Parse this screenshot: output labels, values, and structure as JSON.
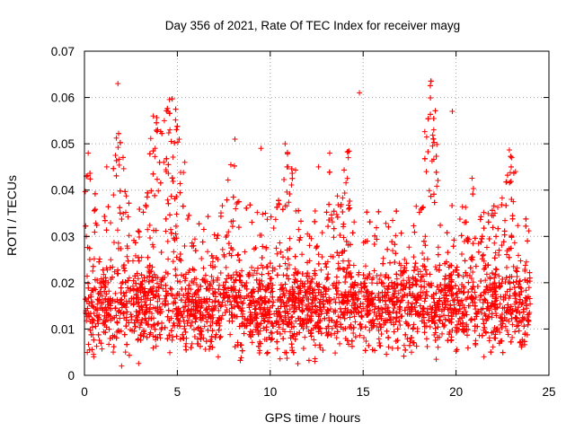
{
  "chart_data": {
    "type": "scatter",
    "title": "Day 356 of 2021, Rate Of TEC Index for receiver mayg",
    "xlabel": "GPS time / hours",
    "ylabel": "ROTI / TECUs",
    "xlim": [
      0,
      25
    ],
    "ylim": [
      0,
      0.07
    ],
    "x_ticks": [
      "0",
      "5",
      "10",
      "15",
      "20",
      "25"
    ],
    "x_tick_values": [
      0,
      5,
      10,
      15,
      20,
      25
    ],
    "y_ticks": [
      "0",
      "0.01",
      "0.02",
      "0.03",
      "0.04",
      "0.05",
      "0.06",
      "0.07"
    ],
    "y_tick_values": [
      0,
      0.01,
      0.02,
      0.03,
      0.04,
      0.05,
      0.06,
      0.07
    ],
    "grid": true,
    "marker": "+",
    "color": "#ff0000",
    "series": [
      {
        "name": "ROTI",
        "description": "dense scatter of ROTI values over 0-24 h, core band roughly 0.006-0.025 TECU/s",
        "band": {
          "x_range": [
            0,
            24
          ],
          "low": 0.006,
          "high": 0.025
        },
        "notable_points": [
          {
            "x": 1.8,
            "y": 0.063
          },
          {
            "x": 14.8,
            "y": 0.061
          },
          {
            "x": 19.8,
            "y": 0.057
          },
          {
            "x": 4.5,
            "y": 0.057
          },
          {
            "x": 3.7,
            "y": 0.056
          },
          {
            "x": 4.3,
            "y": 0.055
          },
          {
            "x": 4.6,
            "y": 0.053
          },
          {
            "x": 18.8,
            "y": 0.053
          },
          {
            "x": 8.1,
            "y": 0.051
          },
          {
            "x": 5.1,
            "y": 0.051
          },
          {
            "x": 10.8,
            "y": 0.05
          },
          {
            "x": 9.5,
            "y": 0.049
          },
          {
            "x": 3.8,
            "y": 0.049
          },
          {
            "x": 0.2,
            "y": 0.048
          },
          {
            "x": 13.2,
            "y": 0.048
          },
          {
            "x": 14.2,
            "y": 0.047
          },
          {
            "x": 23.0,
            "y": 0.047
          },
          {
            "x": 5.4,
            "y": 0.046
          },
          {
            "x": 1.2,
            "y": 0.045
          },
          {
            "x": 10.9,
            "y": 0.045
          },
          {
            "x": 12.6,
            "y": 0.045
          },
          {
            "x": 23.2,
            "y": 0.044
          },
          {
            "x": 18.4,
            "y": 0.044
          },
          {
            "x": 4.4,
            "y": 0.044
          },
          {
            "x": 0.1,
            "y": 0.03
          },
          {
            "x": 2.0,
            "y": 0.002
          },
          {
            "x": 12.4,
            "y": 0.003
          },
          {
            "x": 0.5,
            "y": 0.004
          },
          {
            "x": 7.2,
            "y": 0.004
          },
          {
            "x": 21.5,
            "y": 0.004
          },
          {
            "x": 17.6,
            "y": 0.005
          }
        ]
      }
    ]
  }
}
